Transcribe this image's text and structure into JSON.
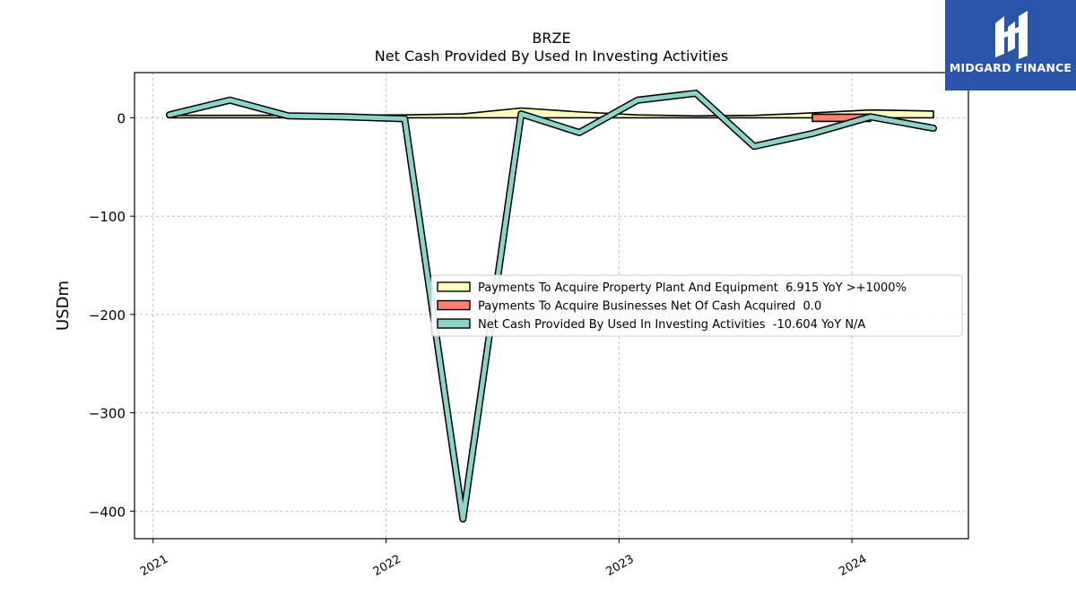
{
  "chart_data": {
    "type": "line",
    "ticker": "BRZE",
    "title": "Net Cash Provided By Used In Investing Activities",
    "ylabel": "USDm",
    "xlabel": "",
    "ylim": [
      -428,
      46
    ],
    "xlim": [
      2020.92,
      2024.5
    ],
    "yticks": [
      0,
      -100,
      -200,
      -300,
      -400
    ],
    "ytick_labels": [
      "0",
      "−100",
      "−200",
      "−300",
      "−400"
    ],
    "xticks": [
      2021,
      2022,
      2023,
      2024
    ],
    "xtick_labels": [
      "2021",
      "2022",
      "2023",
      "2024"
    ],
    "grid": true,
    "legend_position": "center-right",
    "series": [
      {
        "name": "Payments To Acquire Property Plant And Equipment  6.915 YoY >+1000%",
        "kind": "band",
        "color": "#ffffbf",
        "x": [
          2021.07,
          2021.33,
          2021.58,
          2021.83,
          2022.08,
          2022.33,
          2022.58,
          2022.83,
          2023.08,
          2023.33,
          2023.58,
          2023.83,
          2024.08,
          2024.35
        ],
        "values": [
          2.5,
          2.5,
          2.5,
          2.8,
          3.0,
          4.0,
          10.0,
          6.0,
          3.0,
          2.0,
          2.5,
          5.0,
          8.0,
          6.9
        ]
      },
      {
        "name": "Payments To Acquire Businesses Net Of Cash Acquired  0.0",
        "kind": "band",
        "color": "#fb8072",
        "x": [
          2023.83,
          2024.08
        ],
        "values": [
          0.0,
          0.0
        ]
      },
      {
        "name": "Net Cash Provided By Used In Investing Activities  -10.604 YoY N/A",
        "kind": "line",
        "color": "#8dd3c7",
        "x": [
          2021.07,
          2021.33,
          2021.58,
          2021.83,
          2022.08,
          2022.33,
          2022.58,
          2022.83,
          2023.08,
          2023.33,
          2023.58,
          2023.83,
          2024.08,
          2024.35
        ],
        "values": [
          3.0,
          18.0,
          2.0,
          1.0,
          -1.0,
          -408.0,
          4.0,
          -15.0,
          18.0,
          25.0,
          -29.0,
          -16.0,
          1.0,
          -10.6
        ]
      }
    ]
  },
  "logo": {
    "text": "MIDGARD FINANCE",
    "background": "#2a55a8"
  }
}
